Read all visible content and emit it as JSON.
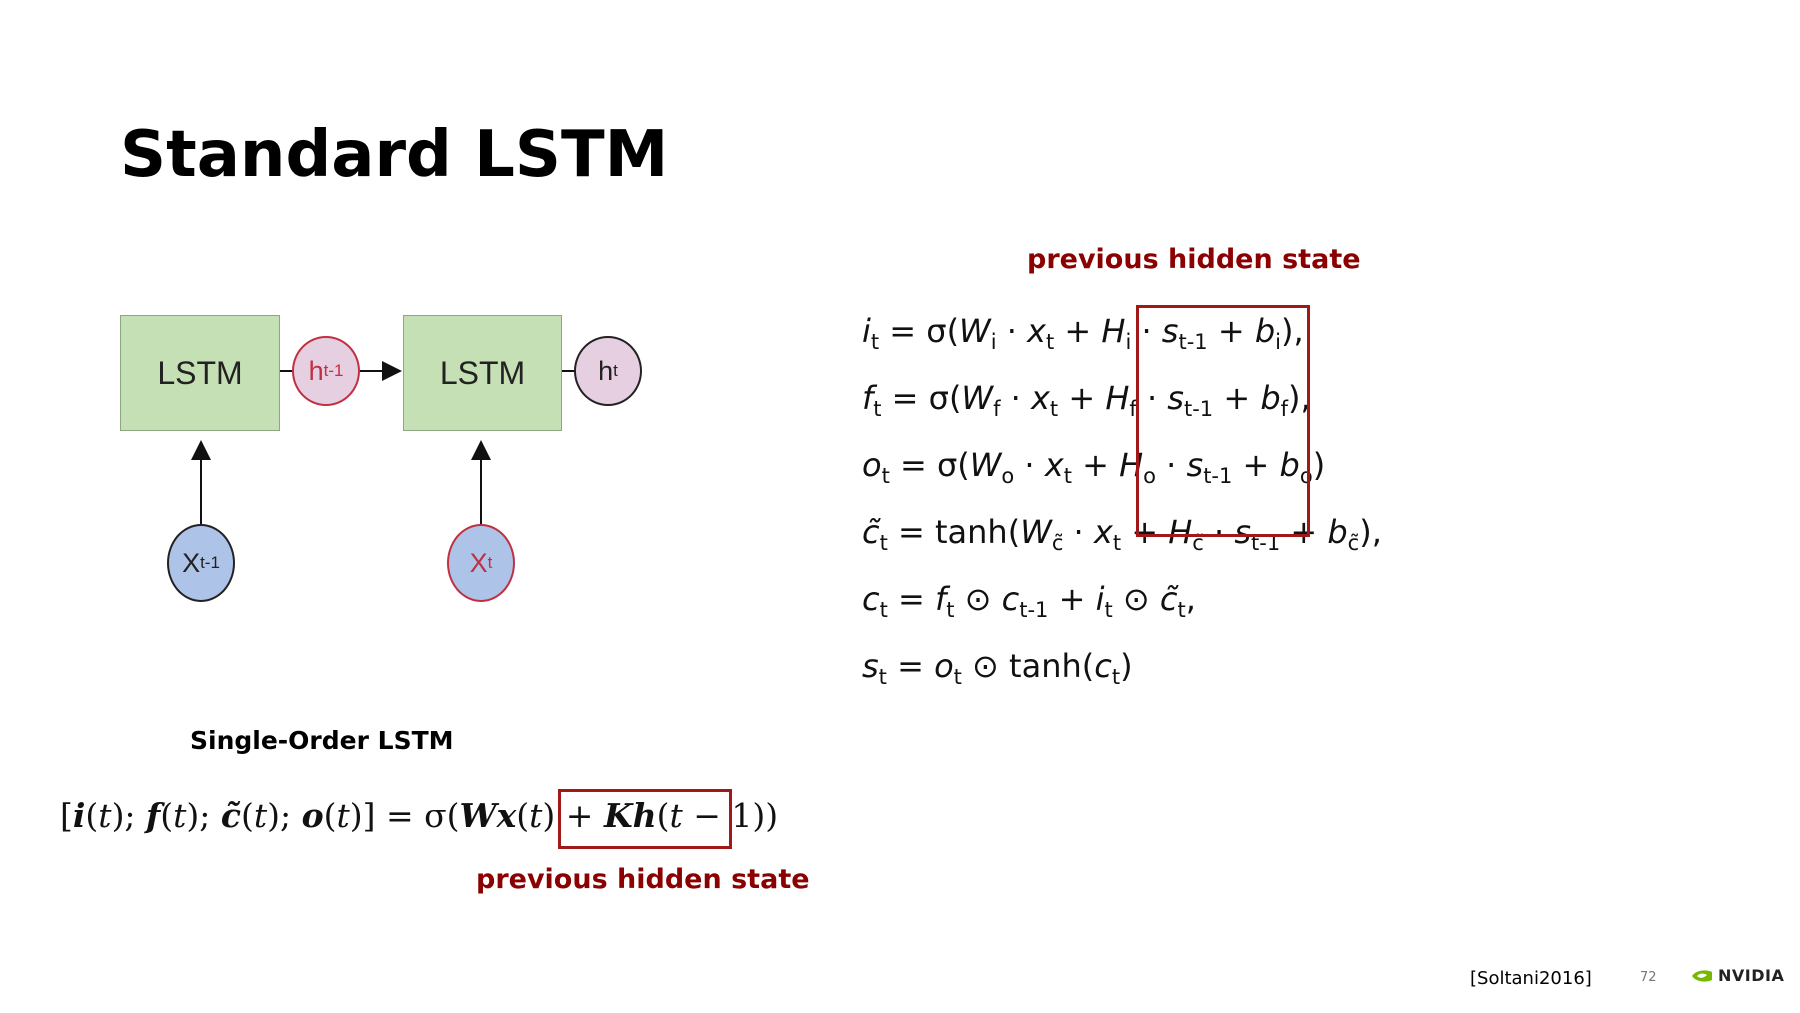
{
  "slide": {
    "title": "Standard LSTM",
    "top_label": "previous hidden state",
    "bottom_label": "previous hidden state",
    "single_order_title": "Single-Order LSTM",
    "reference": "[Soltani2016]",
    "page_number": "72",
    "logo_text": "NVIDIA"
  },
  "diagram": {
    "lstm_box_1": "LSTM",
    "lstm_box_2": "LSTM",
    "h_prev_base": "h",
    "h_prev_sub": "t-1",
    "h_t_base": "h",
    "h_t_sub": "t",
    "x_prev_base": "X",
    "x_prev_sub": "t-1",
    "x_t_base": "X",
    "x_t_sub": "t"
  },
  "colors": {
    "accent_red": "#8b0000",
    "lstm_green": "#c5e0b4",
    "node_purple": "#e5cfe0",
    "node_blue": "#aec3e8"
  }
}
